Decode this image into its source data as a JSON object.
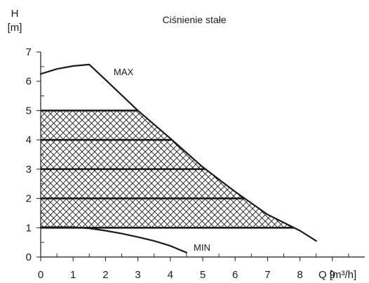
{
  "chart_data": {
    "type": "line",
    "title": "Ciśnienie stałe",
    "xlabel": "Q [m³/h]",
    "ylabel_top": "H",
    "ylabel_unit": "[m]",
    "xlim": [
      0,
      10
    ],
    "ylim": [
      0,
      7
    ],
    "x_ticks": [
      0,
      1,
      2,
      3,
      4,
      5,
      6,
      7,
      8,
      9
    ],
    "y_ticks": [
      0,
      1,
      2,
      3,
      4,
      5,
      6,
      7
    ],
    "grid": false,
    "series": [
      {
        "name": "MAX",
        "x": [
          0,
          0.5,
          1.0,
          1.5,
          2.0,
          3.0,
          4.0,
          5.0,
          6.0,
          7.0,
          8.0,
          8.5
        ],
        "y": [
          6.25,
          6.42,
          6.52,
          6.57,
          6.05,
          5.0,
          4.05,
          3.07,
          2.23,
          1.45,
          0.9,
          0.55
        ]
      },
      {
        "name": "MIN",
        "x": [
          0,
          1.0,
          1.5,
          2.0,
          2.5,
          3.0,
          3.5,
          4.0,
          4.5
        ],
        "y": [
          1.02,
          1.02,
          0.98,
          0.9,
          0.8,
          0.68,
          0.55,
          0.38,
          0.15
        ]
      }
    ],
    "hatched_region": {
      "levels": [
        1,
        2,
        3,
        4,
        5
      ],
      "boundary_series": "MAX"
    },
    "colors": {
      "line": "#1a1a1a",
      "hatch": "#1a1a1a",
      "background": "#ffffff"
    }
  }
}
